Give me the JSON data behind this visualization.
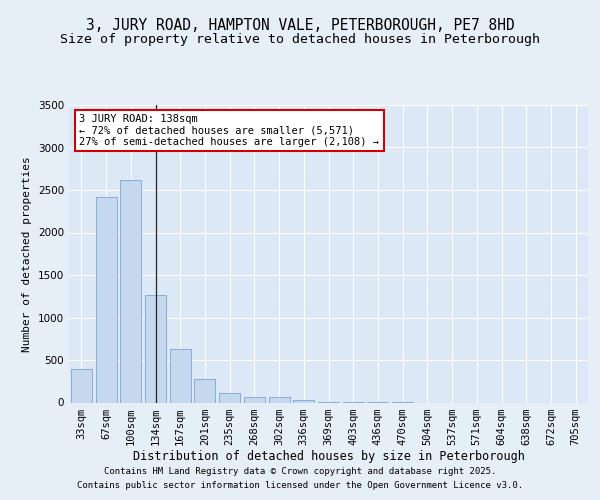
{
  "title1": "3, JURY ROAD, HAMPTON VALE, PETERBOROUGH, PE7 8HD",
  "title2": "Size of property relative to detached houses in Peterborough",
  "xlabel": "Distribution of detached houses by size in Peterborough",
  "ylabel": "Number of detached properties",
  "categories": [
    "33sqm",
    "67sqm",
    "100sqm",
    "134sqm",
    "167sqm",
    "201sqm",
    "235sqm",
    "268sqm",
    "302sqm",
    "336sqm",
    "369sqm",
    "403sqm",
    "436sqm",
    "470sqm",
    "504sqm",
    "537sqm",
    "571sqm",
    "604sqm",
    "638sqm",
    "672sqm",
    "705sqm"
  ],
  "values": [
    400,
    2420,
    2620,
    1270,
    630,
    280,
    115,
    60,
    60,
    30,
    8,
    3,
    1,
    1,
    0,
    0,
    0,
    0,
    0,
    0,
    0
  ],
  "bar_color": "#c5d8ed",
  "bar_edge_color": "#6699cc",
  "annotation_title": "3 JURY ROAD: 138sqm",
  "annotation_line2": "← 72% of detached houses are smaller (5,571)",
  "annotation_line3": "27% of semi-detached houses are larger (2,108) →",
  "annotation_box_facecolor": "#ffffff",
  "annotation_box_edgecolor": "#cc0000",
  "vline_bar_index": 3,
  "ylim": [
    0,
    3500
  ],
  "yticks": [
    0,
    500,
    1000,
    1500,
    2000,
    2500,
    3000,
    3500
  ],
  "bg_color": "#e6eef8",
  "plot_bg_color": "#dce8f5",
  "footer1": "Contains HM Land Registry data © Crown copyright and database right 2025.",
  "footer2": "Contains public sector information licensed under the Open Government Licence v3.0.",
  "title1_fontsize": 10.5,
  "title2_fontsize": 9.5,
  "xlabel_fontsize": 8.5,
  "ylabel_fontsize": 8,
  "tick_fontsize": 7.5,
  "footer_fontsize": 6.5,
  "annotation_fontsize": 7.5
}
